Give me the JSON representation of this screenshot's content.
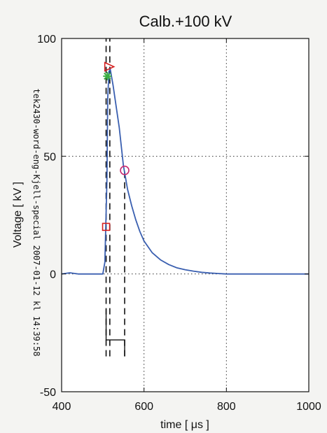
{
  "colors": {
    "axis": "#111111",
    "grid": "#333333",
    "waveform": "#3a5fb0",
    "waveform_dark": "#1a1a1a",
    "marker_triangle": "#d62020",
    "marker_star": "#3cb043",
    "marker_circle": "#c8286e",
    "marker_square": "#d62020",
    "cursor_lines": "#111111"
  },
  "chart_data": {
    "type": "line",
    "title": "Calb.+100 kV",
    "xlabel": "time [ μs ]",
    "ylabel": "Voltage [ kV ]",
    "side_note": "tek2430-word-eng-Kjell-special 2007-01-12 kl 14:39:58",
    "xlim": [
      400,
      1000
    ],
    "ylim": [
      -50,
      100
    ],
    "xticks": [
      400,
      600,
      800,
      1000
    ],
    "yticks": [
      -50,
      0,
      50,
      100
    ],
    "x_tick_labels": [
      "400",
      "600",
      "800",
      "1000"
    ],
    "y_tick_labels": [
      "-50",
      "0",
      "50",
      "100"
    ],
    "grid": "dotted",
    "series": [
      {
        "x": [
          400,
          420,
          440,
          460,
          480,
          500,
          505,
          510,
          512,
          515,
          518,
          520,
          525,
          530,
          540,
          550,
          560,
          570,
          580,
          590,
          600,
          620,
          640,
          660,
          680,
          700,
          720,
          740,
          760,
          780,
          800,
          850,
          900,
          950,
          1000
        ],
        "y": [
          0,
          0.5,
          0,
          0,
          0,
          0,
          5,
          40,
          75,
          86,
          87,
          85,
          80,
          74,
          62,
          46,
          36,
          29,
          23,
          18,
          14,
          9,
          6,
          4,
          2.6,
          1.8,
          1.2,
          0.7,
          0.4,
          0.2,
          0,
          0,
          0,
          0,
          0
        ]
      }
    ],
    "markers": [
      {
        "shape": "triangle",
        "x": 515,
        "y": 88
      },
      {
        "shape": "star",
        "x": 511,
        "y": 84
      },
      {
        "shape": "circle",
        "x": 553,
        "y": 44
      },
      {
        "shape": "square",
        "x": 508,
        "y": 20
      }
    ],
    "vertical_cursors": [
      {
        "x": 508,
        "y_from": -35,
        "y_to": 100
      },
      {
        "x": 517,
        "y_from": -35,
        "y_to": 100
      },
      {
        "x": 553,
        "y_from": -35,
        "y_to": 44
      }
    ],
    "reference_segments": [
      {
        "x": [
          508,
          508,
          553,
          553
        ],
        "y": [
          -15,
          -28,
          -28,
          -35
        ]
      }
    ]
  }
}
